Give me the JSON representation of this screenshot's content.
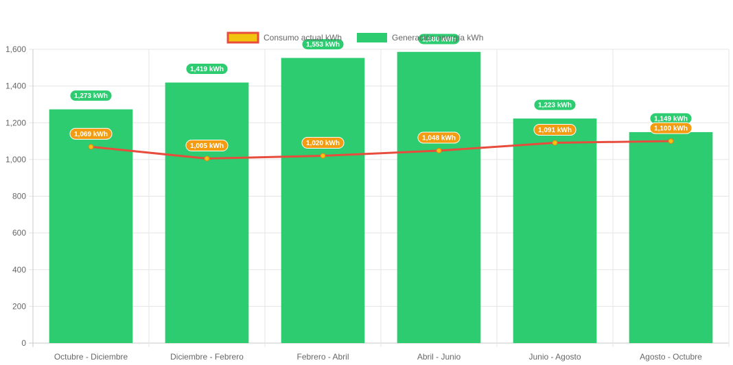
{
  "chart_data": {
    "type": "bar",
    "categories": [
      "Octubre - Diciembre",
      "Diciembre - Febrero",
      "Febrero - Abril",
      "Abril - Junio",
      "Junio - Agosto",
      "Agosto - Octubre"
    ],
    "series": [
      {
        "name": "Consumo actual kWh",
        "type": "line",
        "values": [
          1069,
          1005,
          1020,
          1048,
          1091,
          1100
        ],
        "labels": [
          "1,069 kWh",
          "1,005 kWh",
          "1,020 kWh",
          "1,048 kWh",
          "1,091 kWh",
          "1,100 kWh"
        ],
        "line_color": "#e74c3c",
        "point_color": "#f1c40f",
        "label_color": "#f39c12"
      },
      {
        "name": "Generación energía kWh",
        "type": "bar",
        "values": [
          1273,
          1419,
          1553,
          1586,
          1223,
          1149
        ],
        "labels": [
          "1,273 kWh",
          "1,419 kWh",
          "1,553 kWh",
          "1,586 kWh",
          "1,223 kWh",
          "1,149 kWh"
        ],
        "color": "#2ecc71"
      }
    ],
    "y_ticks": [
      "0",
      "200",
      "400",
      "600",
      "800",
      "1,000",
      "1,200",
      "1,400",
      "1,600"
    ],
    "ylim": [
      0,
      1600
    ],
    "grid": true,
    "legend_position": "top",
    "title": "",
    "xlabel": "",
    "ylabel": ""
  }
}
